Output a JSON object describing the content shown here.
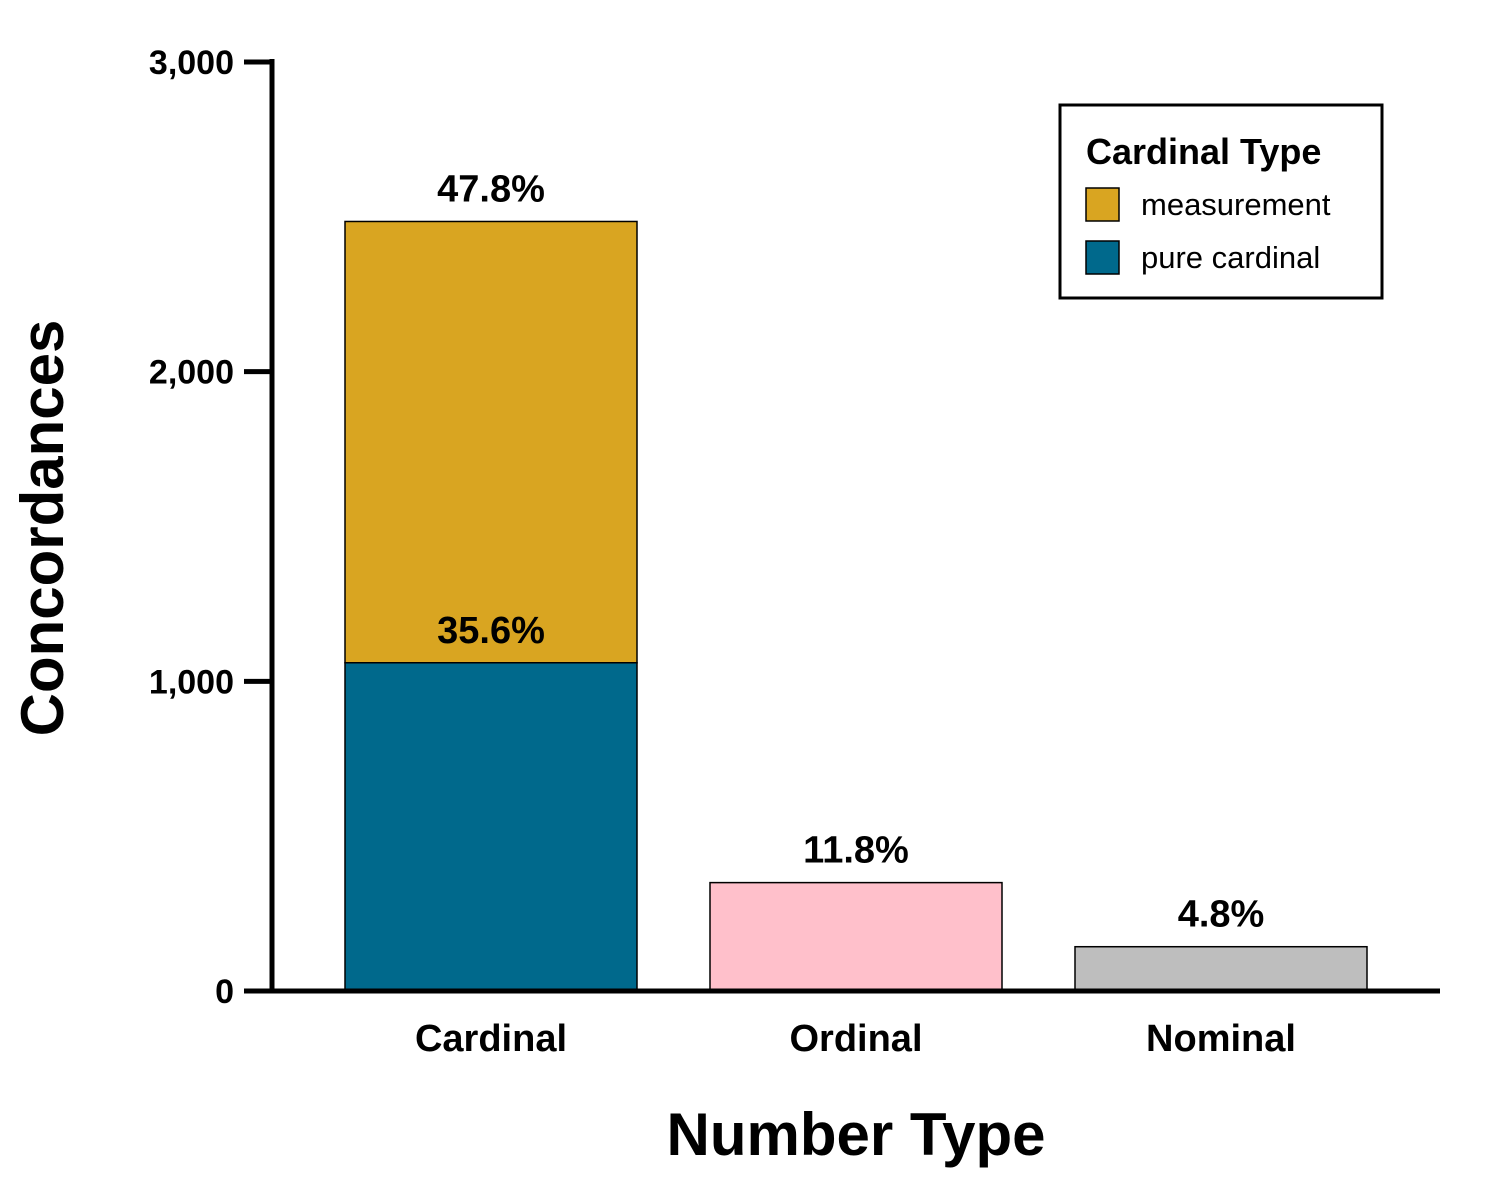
{
  "chart_data": {
    "type": "bar",
    "stacked": true,
    "categories": [
      "Cardinal",
      "Ordinal",
      "Nominal"
    ],
    "xlabel": "Number Type",
    "ylabel": "Concordances",
    "ylim": [
      0,
      3000
    ],
    "yticks": [
      0,
      1000,
      2000,
      3000
    ],
    "ytick_labels": [
      "0",
      "1,000",
      "2,000",
      "3,000"
    ],
    "grid": false,
    "bars": [
      {
        "category": "Cardinal",
        "segments": [
          {
            "series": "pure cardinal",
            "value": 1060,
            "color": "#00698C"
          },
          {
            "series": "measurement",
            "value": 1425,
            "color": "#D9A521"
          }
        ],
        "labels": [
          {
            "text": "35.6%",
            "at": 1060
          },
          {
            "text": "47.8%",
            "at": 2485
          }
        ]
      },
      {
        "category": "Ordinal",
        "segments": [
          {
            "series": "",
            "value": 350,
            "color": "#FFC0CB"
          }
        ],
        "labels": [
          {
            "text": "11.8%",
            "at": 350
          }
        ]
      },
      {
        "category": "Nominal",
        "segments": [
          {
            "series": "",
            "value": 143,
            "color": "#BEBEBE"
          }
        ],
        "labels": [
          {
            "text": "4.8%",
            "at": 143
          }
        ]
      }
    ],
    "legend": {
      "title": "Cardinal Type",
      "placement": "top-right",
      "items": [
        {
          "label": "measurement",
          "color": "#D9A521"
        },
        {
          "label": "pure cardinal",
          "color": "#00698C"
        }
      ]
    }
  }
}
